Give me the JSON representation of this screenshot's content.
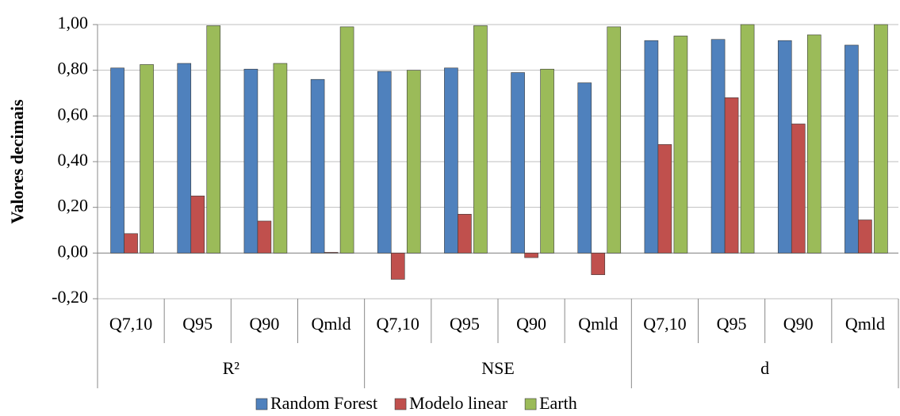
{
  "chart_data": {
    "type": "bar",
    "y_axis_label": "Valores decimais",
    "categories": [
      "Q7,10",
      "Q95",
      "Q90",
      "Qmld",
      "Q7,10",
      "Q95",
      "Q90",
      "Qmld",
      "Q7,10",
      "Q95",
      "Q90",
      "Qmld"
    ],
    "category_groups": [
      "R²",
      "NSE",
      "d"
    ],
    "series": [
      {
        "name": "Random Forest",
        "color": "#4f81bd",
        "values": [
          0.81,
          0.83,
          0.805,
          0.76,
          0.795,
          0.81,
          0.79,
          0.745,
          0.93,
          0.935,
          0.93,
          0.91
        ]
      },
      {
        "name": "Modelo linear",
        "color": "#c0504d",
        "values": [
          0.085,
          0.25,
          0.14,
          0.003,
          -0.115,
          0.17,
          -0.02,
          -0.095,
          0.475,
          0.68,
          0.565,
          0.145
        ]
      },
      {
        "name": "Earth",
        "color": "#9bbb59",
        "values": [
          0.825,
          0.995,
          0.83,
          0.99,
          0.8,
          0.995,
          0.805,
          0.99,
          0.95,
          1.0,
          0.955,
          1.0
        ]
      }
    ],
    "ylim": [
      -0.2,
      1.0
    ],
    "yticks": [
      {
        "value": -0.2,
        "label": "-0,20"
      },
      {
        "value": 0,
        "label": "0,00"
      },
      {
        "value": 0.2,
        "label": "0,20"
      },
      {
        "value": 0.4,
        "label": "0,40"
      },
      {
        "value": 0.6,
        "label": "0,60"
      },
      {
        "value": 0.8,
        "label": "0,80"
      },
      {
        "value": 1.0,
        "label": "1,00"
      }
    ],
    "grid": true,
    "legend": "bottom"
  }
}
